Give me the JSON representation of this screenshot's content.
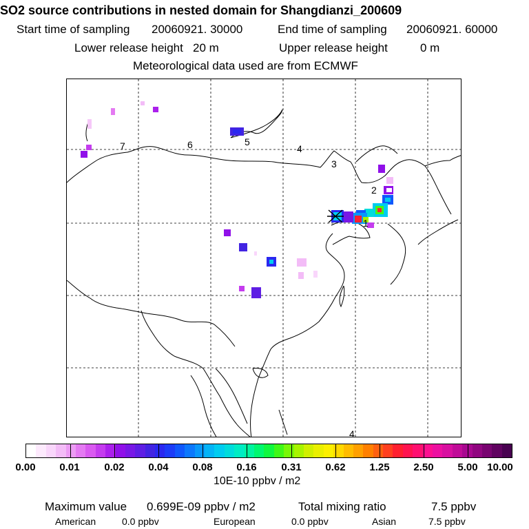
{
  "header": {
    "title": "SO2 source contributions in nested domain for Shangdianzi_200609",
    "start_label": "Start time of sampling",
    "start_value": "20060921. 30000",
    "end_label": "End time of sampling",
    "end_value": "20060921. 60000",
    "lower_label": "Lower release height",
    "lower_value": "20 m",
    "upper_label": "Upper release height",
    "upper_value": "0 m",
    "met_line": "Meteorological data used are from ECMWF"
  },
  "map": {
    "contour_labels": [
      "7",
      "6",
      "5",
      "4",
      "3",
      "2",
      "1",
      "4"
    ],
    "receptor_marker": "x"
  },
  "colorbar": {
    "tick_labels": [
      "0.00",
      "0.01",
      "0.02",
      "0.04",
      "0.08",
      "0.16",
      "0.31",
      "0.62",
      "1.25",
      "2.50",
      "5.00",
      "10.00"
    ],
    "units": "10E-10 ppbv / m2",
    "colors": [
      "#ffffff",
      "#fdeafd",
      "#f9d6fb",
      "#f3bcf7",
      "#ec9cf4",
      "#e47af2",
      "#d95af0",
      "#c43cee",
      "#ab20ec",
      "#9010e9",
      "#7818e6",
      "#5e1ee4",
      "#4224e2",
      "#2a28f0",
      "#1c3cf8",
      "#1058fc",
      "#0c78fc",
      "#0898fa",
      "#04b4f6",
      "#00ccf0",
      "#00dcdc",
      "#00ecc4",
      "#00f4a0",
      "#00f870",
      "#10f840",
      "#40f818",
      "#78f808",
      "#a8f400",
      "#d0f000",
      "#eaf000",
      "#fcf000",
      "#ffd800",
      "#ffbc00",
      "#ffa000",
      "#ff8000",
      "#ff6010",
      "#ff4020",
      "#ff2030",
      "#ff1450",
      "#ff1070",
      "#fc1090",
      "#ec10a0",
      "#d810a0",
      "#c00c98",
      "#a80890",
      "#900680",
      "#780470",
      "#600360",
      "#480250"
    ]
  },
  "summary": {
    "max_label": "Maximum value",
    "max_value": "0.699E-09 ppbv / m2",
    "total_label": "Total mixing ratio",
    "total_value": "7.5 ppbv",
    "american_label": "American",
    "american_value": "0.0 ppbv",
    "european_label": "European",
    "european_value": "0.0 ppbv",
    "asian_label": "Asian",
    "asian_value": "7.5 ppbv"
  }
}
